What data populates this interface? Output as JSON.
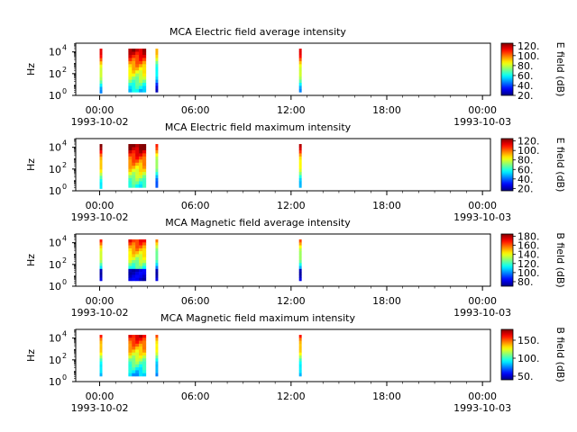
{
  "figure": {
    "panels": [
      {
        "title": "MCA  Electric field average intensity",
        "ylabel": "Hz",
        "colorbar_label": "E field (dB)",
        "colorbar_ticks": [
          "20.",
          "40.",
          "60.",
          "80.",
          "100.",
          "120."
        ],
        "colorbar_range": [
          20,
          125
        ]
      },
      {
        "title": "MCA  Electric field maximum intensity",
        "ylabel": "Hz",
        "colorbar_label": "E field (dB)",
        "colorbar_ticks": [
          "20.",
          "40.",
          "60.",
          "80.",
          "100.",
          "120."
        ],
        "colorbar_range": [
          15,
          125
        ]
      },
      {
        "title": "MCA  Magnetic field average intensity",
        "ylabel": "Hz",
        "colorbar_label": "B field (dB)",
        "colorbar_ticks": [
          "80.",
          "100.",
          "120.",
          "140.",
          "160.",
          "180."
        ],
        "colorbar_range": [
          70,
          185
        ]
      },
      {
        "title": "MCA  Magnetic field maximum intensity",
        "ylabel": "Hz",
        "colorbar_label": "B field (dB)",
        "colorbar_ticks": [
          "50.",
          "100.",
          "150."
        ],
        "colorbar_range": [
          40,
          180
        ]
      }
    ],
    "xticks": [
      {
        "label": "00:00",
        "date": "1993-10-02"
      },
      {
        "label": "06:00",
        "date": ""
      },
      {
        "label": "12:00",
        "date": ""
      },
      {
        "label": "18:00",
        "date": ""
      },
      {
        "label": "00:00",
        "date": "1993-10-03"
      }
    ],
    "yticks": [
      "10^0",
      "10^2",
      "10^4"
    ]
  },
  "chart_data": {
    "type": "heatmap",
    "x_axis": "time (1993-10-02 00:00 to 1993-10-03 00:00)",
    "x_range_hours": [
      -1.5,
      24.5
    ],
    "y_scale": "log",
    "y_range_log10": [
      0,
      4.8
    ],
    "colormap": "jet",
    "panels": [
      {
        "title": "MCA  Electric field average intensity",
        "segments": [
          {
            "t_start": 0.0,
            "t_end": 0.15,
            "y_min_log10": 0.2,
            "y_max_log10": 4.3,
            "level": 0.55
          },
          {
            "t_start": 1.8,
            "t_end": 2.9,
            "y_min_log10": 0.3,
            "y_max_log10": 4.3,
            "level": 0.6
          },
          {
            "t_start": 3.5,
            "t_end": 3.65,
            "y_min_log10": 0.3,
            "y_max_log10": 4.3,
            "level": 0.35
          },
          {
            "t_start": 12.5,
            "t_end": 12.65,
            "y_min_log10": 0.3,
            "y_max_log10": 4.3,
            "level": 0.55
          }
        ]
      },
      {
        "title": "MCA  Electric field maximum intensity",
        "segments": [
          {
            "t_start": 0.0,
            "t_end": 0.15,
            "y_min_log10": 0.2,
            "y_max_log10": 4.3,
            "level": 0.6
          },
          {
            "t_start": 1.8,
            "t_end": 2.9,
            "y_min_log10": 0.3,
            "y_max_log10": 4.3,
            "level": 0.65
          },
          {
            "t_start": 3.5,
            "t_end": 3.65,
            "y_min_log10": 0.3,
            "y_max_log10": 4.3,
            "level": 0.45
          },
          {
            "t_start": 12.5,
            "t_end": 12.65,
            "y_min_log10": 0.3,
            "y_max_log10": 4.3,
            "level": 0.55
          }
        ]
      },
      {
        "title": "MCA  Magnetic field average intensity",
        "segments": [
          {
            "t_start": 0.0,
            "t_end": 0.15,
            "y_min_log10": 0.5,
            "y_max_log10": 4.3,
            "level": 0.45
          },
          {
            "t_start": 1.8,
            "t_end": 2.9,
            "y_min_log10": 0.5,
            "y_max_log10": 4.3,
            "level": 0.5
          },
          {
            "t_start": 3.5,
            "t_end": 3.65,
            "y_min_log10": 0.5,
            "y_max_log10": 4.3,
            "level": 0.35
          },
          {
            "t_start": 12.5,
            "t_end": 12.65,
            "y_min_log10": 0.5,
            "y_max_log10": 4.3,
            "level": 0.4
          }
        ]
      },
      {
        "title": "MCA  Magnetic field maximum intensity",
        "segments": [
          {
            "t_start": 0.0,
            "t_end": 0.15,
            "y_min_log10": 0.5,
            "y_max_log10": 4.3,
            "level": 0.5
          },
          {
            "t_start": 1.8,
            "t_end": 2.9,
            "y_min_log10": 0.5,
            "y_max_log10": 4.3,
            "level": 0.55
          },
          {
            "t_start": 3.5,
            "t_end": 3.65,
            "y_min_log10": 0.5,
            "y_max_log10": 4.3,
            "level": 0.45
          },
          {
            "t_start": 12.5,
            "t_end": 12.65,
            "y_min_log10": 0.5,
            "y_max_log10": 4.3,
            "level": 0.5
          }
        ]
      }
    ]
  }
}
